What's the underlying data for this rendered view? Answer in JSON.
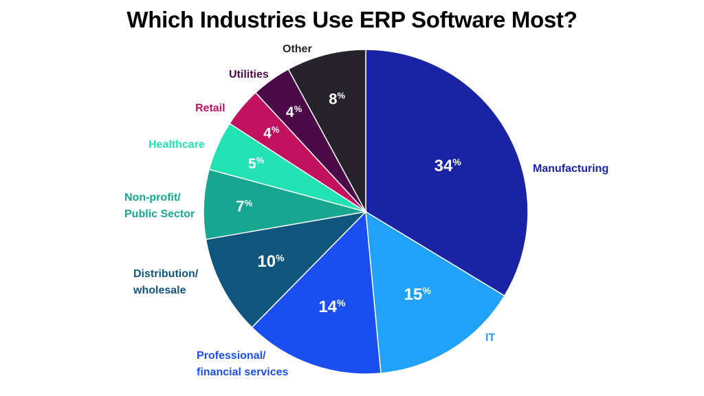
{
  "chart_data": {
    "type": "pie",
    "title": "Which Industries Use ERP Software Most?",
    "unit": "%",
    "slices": [
      {
        "label": [
          "Manufacturing"
        ],
        "value": 34,
        "color": "#1a23a3",
        "label_color": "#1a23a3"
      },
      {
        "label": [
          "IT"
        ],
        "value": 15,
        "color": "#21a2f8",
        "label_color": "#21a2f8"
      },
      {
        "label": [
          "Professional/",
          "financial services"
        ],
        "value": 14,
        "color": "#1a4ef0",
        "label_color": "#1a4ef0"
      },
      {
        "label": [
          "Distribution/",
          "wholesale"
        ],
        "value": 10,
        "color": "#0f557c",
        "label_color": "#0f557c"
      },
      {
        "label": [
          "Non-profit/",
          "Public Sector"
        ],
        "value": 7,
        "color": "#17a790",
        "label_color": "#17a790"
      },
      {
        "label": [
          "Healthcare"
        ],
        "value": 5,
        "color": "#22e2b4",
        "label_color": "#22e2b4"
      },
      {
        "label": [
          "Retail"
        ],
        "value": 4,
        "color": "#c2125f",
        "label_color": "#c2125f"
      },
      {
        "label": [
          "Utilities"
        ],
        "value": 4,
        "color": "#4b0a47",
        "label_color": "#4b0a47"
      },
      {
        "label": [
          "Other"
        ],
        "value": 8,
        "color": "#26232c",
        "label_color": "#26232c"
      }
    ]
  }
}
